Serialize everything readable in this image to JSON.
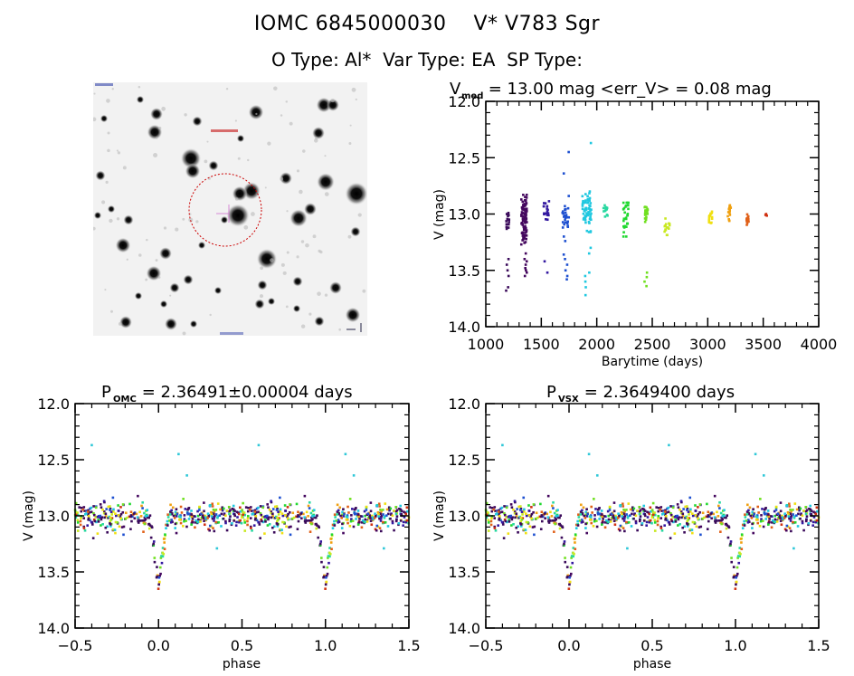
{
  "header": {
    "line1": "IOMC 6845000030    V* V783 Sgr",
    "line2": "O Type: Al*  Var Type: EA  SP Type:"
  },
  "thumbnail": {
    "description": "Sky field image (inverted greyscale) with red dashed aperture circle around target",
    "aperture_color": "#cc0000",
    "marker_color": "#d070d0"
  },
  "chart_data": [
    {
      "id": "lightcurve",
      "type": "scatter",
      "title_main": "V",
      "title_sub": "med",
      "title_rest": " = 13.00 mag <err_V> = 0.08 mag",
      "xlabel": "Barytime (days)",
      "ylabel": "V (mag)",
      "xlim": [
        1000,
        4000
      ],
      "ylim": [
        14.0,
        12.0
      ],
      "y_inverted": true,
      "xticks": [
        1000,
        1500,
        2000,
        2500,
        3000,
        3500,
        4000
      ],
      "xtick_labels": [
        "1000",
        "1500",
        "2000",
        "2500",
        "3000",
        "3500",
        "4000"
      ],
      "yticks": [
        12.0,
        12.5,
        13.0,
        13.5,
        14.0
      ],
      "ytick_labels": [
        "12.0",
        "12.5",
        "13.0",
        "13.5",
        "14.0"
      ],
      "color_by": "time (rainbow: purple → red)",
      "seasons": [
        {
          "t": [
            1180,
            1210
          ],
          "v_center": 13.07,
          "v_spread": 0.1,
          "n": 14,
          "low": [
            13.4,
            13.45,
            13.5,
            13.55,
            13.65,
            13.68
          ],
          "color": "#3a0a5a"
        },
        {
          "t": [
            1320,
            1370
          ],
          "v_center": 13.05,
          "v_spread": 0.22,
          "n": 90,
          "low": [
            13.35,
            13.4,
            13.42,
            13.45,
            13.48,
            13.5,
            13.52,
            13.55
          ],
          "color": "#44075e"
        },
        {
          "t": [
            1520,
            1570
          ],
          "v_center": 12.95,
          "v_spread": 0.1,
          "n": 18,
          "low": [
            13.42,
            13.52
          ],
          "color": "#3318a0"
        },
        {
          "t": [
            1690,
            1750
          ],
          "v_center": 13.02,
          "v_spread": 0.1,
          "n": 25,
          "low": [
            12.64,
            12.84,
            12.93,
            13.2,
            13.24,
            13.36,
            13.4,
            13.45,
            13.5,
            13.55,
            13.58
          ],
          "high": [
            12.45
          ],
          "color": "#1e50d0"
        },
        {
          "t": [
            1870,
            1950
          ],
          "v_center": 12.98,
          "v_spread": 0.18,
          "n": 60,
          "low": [
            13.3,
            13.35,
            13.52,
            13.55,
            13.6,
            13.65,
            13.72
          ],
          "high": [
            12.37
          ],
          "color": "#20c8e0"
        },
        {
          "t": [
            2060,
            2100
          ],
          "v_center": 12.95,
          "v_spread": 0.1,
          "n": 14,
          "low": [],
          "color": "#28d8a0"
        },
        {
          "t": [
            2240,
            2290
          ],
          "v_center": 13.05,
          "v_spread": 0.15,
          "n": 30,
          "low": [],
          "color": "#20d830"
        },
        {
          "t": [
            2430,
            2460
          ],
          "v_center": 12.98,
          "v_spread": 0.1,
          "n": 22,
          "low": [
            13.52,
            13.56,
            13.6,
            13.64
          ],
          "color": "#70e020"
        },
        {
          "t": [
            2610,
            2660
          ],
          "v_center": 13.12,
          "v_spread": 0.08,
          "n": 16,
          "low": [],
          "color": "#c8e820"
        },
        {
          "t": [
            3010,
            3040
          ],
          "v_center": 13.05,
          "v_spread": 0.08,
          "n": 14,
          "low": [],
          "color": "#f0e010"
        },
        {
          "t": [
            3180,
            3210
          ],
          "v_center": 12.98,
          "v_spread": 0.08,
          "n": 18,
          "low": [],
          "color": "#f0a010"
        },
        {
          "t": [
            3350,
            3370
          ],
          "v_center": 13.06,
          "v_spread": 0.08,
          "n": 14,
          "low": [],
          "color": "#e06018"
        },
        {
          "t": [
            3520,
            3535
          ],
          "v_center": 13.01,
          "v_spread": 0.01,
          "n": 3,
          "low": [],
          "color": "#d03010"
        }
      ]
    },
    {
      "id": "phase_omc",
      "type": "scatter",
      "title_main": "P",
      "title_sub": "OMC",
      "title_rest": " = 2.36491±0.00004 days",
      "xlabel": "phase",
      "ylabel": "V (mag)",
      "xlim": [
        -0.5,
        1.5
      ],
      "ylim": [
        14.0,
        12.0
      ],
      "y_inverted": true,
      "xticks": [
        -0.5,
        0.0,
        0.5,
        1.0,
        1.5
      ],
      "xtick_labels": [
        "−0.5",
        "0.0",
        "0.5",
        "1.0",
        "1.5"
      ],
      "yticks": [
        12.0,
        12.5,
        13.0,
        13.5,
        14.0
      ],
      "ytick_labels": [
        "12.0",
        "12.5",
        "13.0",
        "13.5",
        "14.0"
      ],
      "period_days": 2.36491,
      "baseline_mag": 13.0,
      "primary_eclipse": {
        "phase": 0.0,
        "depth_mag": 0.65,
        "halfwidth_phase": 0.07
      },
      "outliers": [
        [
          -0.4,
          12.37
        ],
        [
          0.6,
          12.37
        ],
        [
          0.12,
          12.45
        ],
        [
          1.12,
          12.45
        ],
        [
          0.17,
          12.64
        ],
        [
          1.17,
          12.64
        ],
        [
          0.35,
          13.29
        ],
        [
          1.35,
          13.29
        ]
      ]
    },
    {
      "id": "phase_vsx",
      "type": "scatter",
      "title_main": "P",
      "title_sub": "VSX",
      "title_rest": " = 2.3649400 days",
      "xlabel": "phase",
      "ylabel": "V (mag)",
      "xlim": [
        -0.5,
        1.5
      ],
      "ylim": [
        14.0,
        12.0
      ],
      "y_inverted": true,
      "xticks": [
        -0.5,
        0.0,
        0.5,
        1.0,
        1.5
      ],
      "xtick_labels": [
        "−0.5",
        "0.0",
        "0.5",
        "1.0",
        "1.5"
      ],
      "yticks": [
        12.0,
        12.5,
        13.0,
        13.5,
        14.0
      ],
      "ytick_labels": [
        "12.0",
        "12.5",
        "13.0",
        "13.5",
        "14.0"
      ],
      "period_days": 2.36494,
      "baseline_mag": 13.0,
      "primary_eclipse": {
        "phase": 0.0,
        "depth_mag": 0.65,
        "halfwidth_phase": 0.07
      },
      "outliers": [
        [
          -0.4,
          12.37
        ],
        [
          0.6,
          12.37
        ],
        [
          0.12,
          12.45
        ],
        [
          1.12,
          12.45
        ],
        [
          0.17,
          12.64
        ],
        [
          1.17,
          12.64
        ],
        [
          0.35,
          13.29
        ],
        [
          1.35,
          13.29
        ]
      ]
    }
  ]
}
